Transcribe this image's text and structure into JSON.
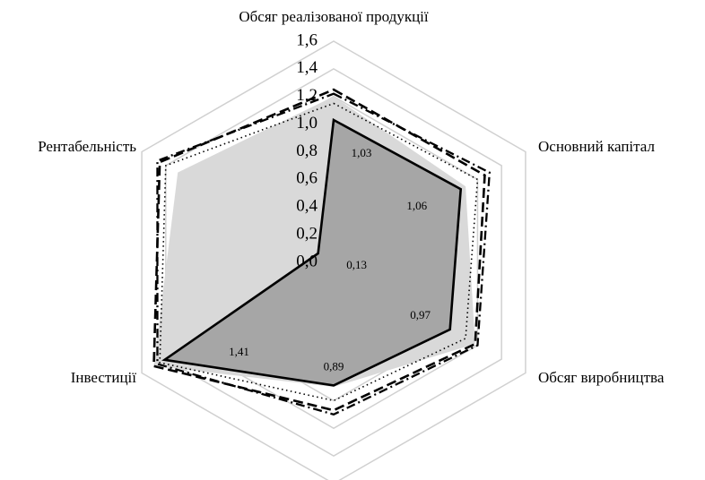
{
  "chart_data": {
    "type": "radar",
    "categories": [
      "Обсяг реалізованої продукції",
      "Основний капітал",
      "Обсяг виробництва",
      null,
      "Інвестиції",
      "Рентабельність"
    ],
    "rlim": [
      0,
      1.6
    ],
    "rticks": [
      {
        "value": 0,
        "label": "0,0"
      },
      {
        "value": 0.2,
        "label": "0,2"
      },
      {
        "value": 0.4,
        "label": "0,4"
      },
      {
        "value": 0.6,
        "label": "0,6"
      },
      {
        "value": 0.8,
        "label": "0,8"
      },
      {
        "value": 1.0,
        "label": "1,0"
      },
      {
        "value": 1.2,
        "label": "1,2"
      },
      {
        "value": 1.4,
        "label": "1,4"
      },
      {
        "value": 1.6,
        "label": "1,6"
      }
    ],
    "grid": true,
    "series": [
      {
        "fill": "#d9d9d9",
        "color": "none",
        "line_style": "none",
        "values": [
          1.2,
          1.1,
          1.18,
          0.9,
          1.5,
          1.3
        ]
      },
      {
        "fill": "#a6a6a6",
        "color": "#000000",
        "line_style": "solid",
        "values": [
          1.03,
          1.06,
          0.97,
          0.89,
          1.41,
          0.13
        ],
        "value_labels": [
          "1,03",
          "1,06",
          "0,97",
          "0,89",
          "1,41",
          "0,13"
        ]
      },
      {
        "fill": "none",
        "color": "#000000",
        "line_style": "dotted",
        "values": [
          1.15,
          1.2,
          1.1,
          1.0,
          1.45,
          1.4
        ]
      },
      {
        "fill": "none",
        "color": "#000000",
        "line_style": "dashed",
        "values": [
          1.25,
          1.26,
          1.18,
          1.07,
          1.5,
          1.45
        ]
      },
      {
        "fill": "none",
        "color": "#000000",
        "line_style": "dashdot",
        "values": [
          1.22,
          1.3,
          1.2,
          1.1,
          1.47,
          1.47
        ]
      }
    ]
  }
}
